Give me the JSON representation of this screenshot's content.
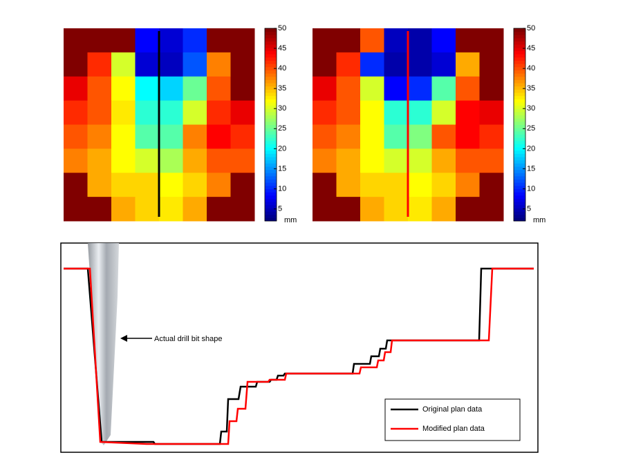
{
  "chart_data": [
    {
      "type": "heatmap",
      "clim": [
        2,
        50
      ],
      "colorbar_ticks": [
        5,
        10,
        15,
        20,
        25,
        30,
        35,
        40,
        45,
        50
      ],
      "colorbar_unit": "mm",
      "marker_color": "#000000",
      "values": [
        [
          50,
          50,
          50,
          8,
          6,
          10,
          50,
          50
        ],
        [
          50,
          42,
          30,
          6,
          5,
          12,
          38,
          50
        ],
        [
          45,
          40,
          32,
          20,
          18,
          25,
          40,
          50
        ],
        [
          42,
          40,
          33,
          22,
          22,
          30,
          42,
          45
        ],
        [
          40,
          38,
          32,
          24,
          24,
          38,
          44,
          42
        ],
        [
          38,
          36,
          32,
          30,
          28,
          36,
          40,
          40
        ],
        [
          50,
          36,
          34,
          34,
          32,
          34,
          38,
          50
        ],
        [
          50,
          50,
          36,
          34,
          33,
          36,
          50,
          50
        ]
      ]
    },
    {
      "type": "heatmap",
      "clim": [
        2,
        50
      ],
      "colorbar_ticks": [
        5,
        10,
        15,
        20,
        25,
        30,
        35,
        40,
        45,
        50
      ],
      "colorbar_unit": "mm",
      "marker_color": "#ff0000",
      "values": [
        [
          50,
          50,
          40,
          5,
          4,
          8,
          50,
          50
        ],
        [
          50,
          42,
          10,
          4,
          4,
          6,
          36,
          50
        ],
        [
          45,
          40,
          30,
          8,
          10,
          24,
          40,
          50
        ],
        [
          42,
          40,
          32,
          22,
          22,
          30,
          44,
          45
        ],
        [
          40,
          38,
          32,
          24,
          26,
          40,
          44,
          42
        ],
        [
          38,
          36,
          32,
          30,
          30,
          36,
          40,
          40
        ],
        [
          50,
          36,
          34,
          34,
          32,
          34,
          38,
          50
        ],
        [
          50,
          50,
          36,
          34,
          33,
          36,
          50,
          50
        ]
      ]
    },
    {
      "type": "line",
      "xlim": [
        0,
        690
      ],
      "ylim": [
        0,
        303
      ],
      "annotation": "Actual drill bit shape",
      "series": [
        {
          "name": "Original plan data",
          "color": "#000000",
          "x": [
            4,
            39,
            59,
            134,
            136,
            230,
            232,
            240,
            242,
            257,
            260,
            282,
            284,
            302,
            304,
            312,
            314,
            322,
            324,
            422,
            424,
            447,
            449,
            460,
            462,
            470,
            472,
            605,
            608,
            684
          ],
          "values": [
            266,
            266,
            15,
            15,
            12,
            12,
            30,
            30,
            77,
            77,
            95,
            95,
            102,
            102,
            105,
            105,
            111,
            111,
            114,
            114,
            128,
            128,
            139,
            139,
            150,
            150,
            162,
            162,
            266,
            266
          ]
        },
        {
          "name": "Modified plan data",
          "color": "#ff0000",
          "x": [
            4,
            42,
            57,
            124,
            242,
            244,
            254,
            256,
            267,
            270,
            300,
            302,
            324,
            326,
            432,
            434,
            457,
            459,
            467,
            469,
            477,
            479,
            619,
            624,
            684
          ],
          "values": [
            266,
            266,
            15,
            12,
            12,
            45,
            45,
            63,
            63,
            102,
            102,
            105,
            105,
            114,
            114,
            123,
            123,
            133,
            133,
            145,
            145,
            162,
            162,
            266,
            266
          ]
        }
      ]
    }
  ]
}
